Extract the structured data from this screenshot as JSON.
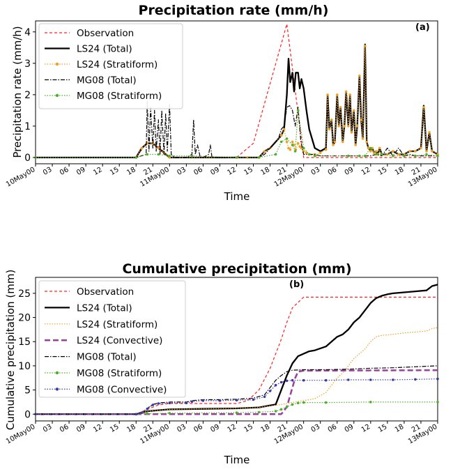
{
  "chart_data": [
    {
      "type": "line",
      "title": "Precipitation rate (mm/h)",
      "panel_label": "(a)",
      "xlabel": "Time",
      "ylabel": "Precipitation rate (mm/h)",
      "xlim": [
        0,
        72
      ],
      "ylim": [
        -0.2,
        4.35
      ],
      "yticks": [
        0,
        1,
        2,
        3,
        4
      ],
      "xtick_labels": [
        "10May00",
        "03",
        "06",
        "09",
        "12",
        "15",
        "18",
        "21",
        "11May00",
        "03",
        "06",
        "09",
        "12",
        "15",
        "18",
        "21",
        "12May00",
        "03",
        "06",
        "09",
        "12",
        "15",
        "18",
        "21",
        "13May00"
      ],
      "legend_position": "top-left",
      "series": [
        {
          "name": "Observation",
          "color": "#ff2020",
          "style": "dashed",
          "x": [
            0,
            18,
            20,
            22,
            24,
            36,
            39,
            45,
            48,
            72
          ],
          "y": [
            0,
            0,
            0.5,
            0.35,
            0,
            0,
            0.45,
            4.25,
            0,
            0
          ]
        },
        {
          "name": "LS24 (Total)",
          "color": "#000000",
          "style": "solid-thick",
          "x": [
            0,
            18,
            19,
            20,
            21,
            22,
            23,
            24,
            36,
            38,
            40,
            41,
            42,
            44,
            44.5,
            45,
            45.3,
            45.6,
            46,
            46.3,
            46.6,
            47,
            47.3,
            47.6,
            48,
            48.5,
            49,
            50,
            51,
            52,
            52.3,
            52.6,
            53,
            53.3,
            53.6,
            54,
            54.3,
            54.6,
            55,
            55.3,
            55.6,
            56,
            56.3,
            56.6,
            57,
            57.3,
            57.6,
            58,
            58.3,
            58.6,
            59,
            59.3,
            59.6,
            60,
            60.3,
            60.6,
            61,
            61.3,
            61.6,
            62,
            63,
            64,
            65,
            66,
            67,
            68,
            69,
            69.5,
            70,
            70.5,
            71,
            72
          ],
          "y": [
            0,
            0,
            0.3,
            0.45,
            0.45,
            0.3,
            0.15,
            0,
            0,
            0,
            0,
            0.2,
            0.3,
            0.7,
            0.9,
            2.0,
            3.15,
            2.4,
            2.7,
            2.1,
            2.7,
            2.7,
            2.2,
            2.5,
            2.2,
            1.5,
            0.9,
            0.3,
            0.2,
            0.3,
            2.0,
            0.9,
            1.2,
            0.4,
            0.5,
            2.0,
            1.0,
            1.6,
            0.5,
            1.0,
            2.1,
            1.0,
            2.0,
            0.8,
            1.5,
            0.4,
            1.0,
            2.6,
            1.2,
            0.6,
            3.6,
            0.5,
            0.3,
            0.2,
            0.3,
            0.15,
            0.2,
            0.1,
            0.3,
            0.1,
            0.1,
            0.2,
            0.1,
            0.1,
            0.2,
            0.2,
            0.3,
            1.65,
            0.2,
            0.8,
            0.2,
            0.1
          ]
        },
        {
          "name": "LS24 (Stratiform)",
          "color": "#f0a020",
          "style": "dotted-marker",
          "x": [
            0,
            18,
            19,
            20,
            21,
            22,
            23,
            24,
            36,
            38,
            40,
            41,
            42,
            44,
            44.5,
            45,
            45.3,
            45.6,
            46,
            46.3,
            46.6,
            47,
            47.3,
            47.6,
            48,
            48.5,
            49,
            50,
            51,
            52,
            52.3,
            52.6,
            53,
            53.3,
            53.6,
            54,
            54.3,
            54.6,
            55,
            55.3,
            55.6,
            56,
            56.3,
            56.6,
            57,
            57.3,
            57.6,
            58,
            58.3,
            58.6,
            59,
            59.3,
            59.6,
            60,
            60.3,
            60.6,
            61,
            61.3,
            61.6,
            62,
            63,
            64,
            65,
            66,
            67,
            68,
            69,
            69.5,
            70,
            70.5,
            71,
            72
          ],
          "y": [
            0,
            0,
            0.3,
            0.45,
            0.45,
            0.3,
            0.15,
            0,
            0,
            0,
            0,
            0.2,
            0.3,
            0.7,
            0.9,
            0.5,
            0.3,
            0.25,
            0.5,
            0.4,
            0.25,
            0.45,
            0.35,
            0.3,
            0.2,
            0.15,
            0.1,
            0.1,
            0.15,
            0.25,
            2.0,
            0.9,
            1.2,
            0.4,
            0.5,
            2.0,
            1.0,
            1.6,
            0.5,
            1.0,
            2.1,
            1.0,
            2.0,
            0.8,
            1.5,
            0.4,
            1.0,
            2.6,
            1.2,
            0.6,
            3.55,
            0.5,
            0.3,
            0.2,
            0.3,
            0.15,
            0.2,
            0.1,
            0.3,
            0.1,
            0.1,
            0.2,
            0.1,
            0.1,
            0.2,
            0.2,
            0.3,
            1.6,
            0.2,
            0.8,
            0.2,
            0.1
          ]
        },
        {
          "name": "MG08 (Total)",
          "color": "#000000",
          "style": "dashdot",
          "x": [
            0,
            18,
            19.8,
            20,
            20.3,
            20.6,
            21,
            21.3,
            21.6,
            22,
            22.3,
            22.6,
            23,
            23.3,
            23.6,
            24,
            24.3,
            25,
            27,
            28,
            28.3,
            28.6,
            29,
            29.5,
            30,
            31,
            31.3,
            31.6,
            32,
            36,
            40,
            41,
            42,
            43,
            43.5,
            44,
            44.5,
            45,
            45.5,
            46,
            46.5,
            47,
            47.5,
            48,
            49,
            50,
            51,
            52,
            53,
            54,
            55,
            56,
            57,
            58,
            59,
            60,
            61,
            62,
            63,
            64,
            65,
            66,
            67,
            68,
            69,
            70,
            71,
            72
          ],
          "y": [
            0,
            0,
            0.1,
            1.8,
            0.2,
            1.6,
            0.3,
            1.5,
            0.2,
            1.2,
            0.1,
            1.5,
            0.1,
            1.4,
            0.2,
            1.7,
            0.1,
            0,
            0,
            0.1,
            1.2,
            0.1,
            0.4,
            0,
            0,
            0.1,
            0.4,
            0,
            0,
            0,
            0,
            0.1,
            0.3,
            0.5,
            0.6,
            0.9,
            1.0,
            1.6,
            1.65,
            1.5,
            1.0,
            1.6,
            0.5,
            0.1,
            0.1,
            0.1,
            0.05,
            0.05,
            0.05,
            0.05,
            0.05,
            0.05,
            0.05,
            0.05,
            0.05,
            0.05,
            0.1,
            0.05,
            0.3,
            0.05,
            0.3,
            0.05,
            0.1,
            0.05,
            0.05,
            0.05,
            0.05,
            0.05
          ]
        },
        {
          "name": "MG08 (Stratiform)",
          "color": "#4caf2a",
          "style": "dotted-marker",
          "x": [
            0,
            18,
            20,
            22,
            24,
            28,
            36,
            40,
            43,
            44,
            45,
            46,
            46.5,
            47,
            48,
            49,
            50,
            56,
            58,
            59,
            60,
            61,
            62,
            64,
            66,
            68,
            70,
            72
          ],
          "y": [
            0,
            0,
            0.1,
            0.1,
            0.05,
            0.05,
            0,
            0,
            0.1,
            0.5,
            0.6,
            0.4,
            0.2,
            1.5,
            0.3,
            0.1,
            0.05,
            0.05,
            0.05,
            0.05,
            0.3,
            0.1,
            0.1,
            0.05,
            0.05,
            0.05,
            0.1,
            0.05
          ]
        }
      ]
    },
    {
      "type": "line",
      "title": "Cumulative precipitation (mm)",
      "panel_label": "(b)",
      "xlabel": "Time",
      "ylabel": "Cumulative precipitation (mm)",
      "xlim": [
        0,
        72
      ],
      "ylim": [
        -1.4,
        28.3
      ],
      "yticks": [
        0,
        5,
        10,
        15,
        20,
        25
      ],
      "xtick_labels": [
        "10May00",
        "03",
        "06",
        "09",
        "12",
        "15",
        "18",
        "21",
        "11May00",
        "03",
        "06",
        "09",
        "12",
        "15",
        "18",
        "21",
        "12May00",
        "03",
        "06",
        "09",
        "12",
        "15",
        "18",
        "21",
        "13May00"
      ],
      "legend_position": "top-left",
      "series": [
        {
          "name": "Observation",
          "color": "#ff2020",
          "style": "dashed",
          "x": [
            0,
            18,
            20,
            22,
            24,
            36,
            38,
            40,
            42,
            44,
            45,
            46,
            48,
            72
          ],
          "y": [
            0,
            0,
            1.0,
            1.9,
            2.2,
            2.2,
            2.8,
            5.0,
            9.5,
            15.5,
            19.0,
            22.0,
            24.2,
            24.2
          ]
        },
        {
          "name": "LS24 (Total)",
          "color": "#000000",
          "style": "solid-thick",
          "x": [
            0,
            18,
            19,
            20,
            22,
            24,
            30,
            36,
            40,
            43,
            44,
            45,
            46,
            47,
            48,
            49,
            50,
            52,
            53,
            54,
            55,
            56,
            57,
            58,
            59,
            60,
            61,
            62,
            63,
            64,
            66,
            68,
            70,
            71,
            72
          ],
          "y": [
            0,
            0,
            0.3,
            0.6,
            0.8,
            1.0,
            1.1,
            1.2,
            1.4,
            2.0,
            5.0,
            8.0,
            10.5,
            12.0,
            12.5,
            13.0,
            13.2,
            14.0,
            15.0,
            16.0,
            16.5,
            17.5,
            19.0,
            20.0,
            21.5,
            23.0,
            24.0,
            24.5,
            24.8,
            25.0,
            25.2,
            25.4,
            25.6,
            26.5,
            26.8
          ]
        },
        {
          "name": "LS24 (Stratiform)",
          "color": "#f0a020",
          "style": "dotted",
          "x": [
            0,
            18,
            20,
            24,
            36,
            40,
            44,
            46,
            48,
            50,
            52,
            53,
            54,
            55,
            56,
            57,
            58,
            59,
            60,
            61,
            62,
            64,
            66,
            68,
            70,
            71,
            72
          ],
          "y": [
            0,
            0,
            0.6,
            1.0,
            1.2,
            1.4,
            2.0,
            2.4,
            2.8,
            3.2,
            4.5,
            6.0,
            7.5,
            8.5,
            10.0,
            11.5,
            12.5,
            13.5,
            15.0,
            16.0,
            16.3,
            16.5,
            16.8,
            17.0,
            17.2,
            17.7,
            17.9
          ]
        },
        {
          "name": "LS24 (Convective)",
          "color": "#9c3f9c",
          "style": "dashed-thick",
          "x": [
            0,
            44,
            45,
            46,
            46.5,
            47,
            48,
            72
          ],
          "y": [
            0,
            0,
            1.5,
            5.5,
            7.5,
            8.8,
            9.0,
            9.1
          ]
        },
        {
          "name": "MG08 (Total)",
          "color": "#000000",
          "style": "dashdot",
          "x": [
            0,
            18,
            19,
            20,
            21,
            22,
            24,
            27,
            28,
            30,
            33,
            36,
            39,
            41,
            42,
            43,
            44,
            45,
            46,
            48,
            52,
            56,
            60,
            64,
            68,
            72
          ],
          "y": [
            0,
            0,
            0.3,
            1.2,
            2.0,
            2.3,
            2.5,
            2.5,
            2.8,
            3.0,
            3.0,
            3.1,
            3.3,
            4.0,
            5.5,
            7.0,
            8.0,
            8.8,
            9.1,
            9.2,
            9.2,
            9.3,
            9.5,
            9.6,
            9.8,
            10.0
          ]
        },
        {
          "name": "MG08 (Stratiform)",
          "color": "#4caf2a",
          "style": "dotted-marker",
          "x": [
            0,
            18,
            20,
            24,
            36,
            40,
            43,
            44,
            45,
            46,
            47,
            48,
            52,
            60,
            72
          ],
          "y": [
            0,
            0,
            0.1,
            0.2,
            0.3,
            0.4,
            0.6,
            1.0,
            1.5,
            2.0,
            2.3,
            2.4,
            2.4,
            2.5,
            2.5
          ]
        },
        {
          "name": "MG08 (Convective)",
          "color": "#3a3aa8",
          "style": "dotted-marker",
          "x": [
            0,
            18,
            19,
            20,
            21,
            22,
            24,
            27,
            28,
            30,
            33,
            36,
            39,
            41,
            42,
            43,
            44,
            45,
            46,
            48,
            52,
            56,
            60,
            64,
            68,
            72
          ],
          "y": [
            0,
            0,
            0.3,
            1.1,
            1.9,
            2.2,
            2.3,
            2.3,
            2.6,
            2.8,
            2.8,
            2.9,
            3.0,
            3.6,
            4.8,
            6.0,
            6.6,
            6.9,
            7.0,
            7.0,
            7.0,
            7.1,
            7.1,
            7.1,
            7.2,
            7.3
          ]
        }
      ]
    }
  ]
}
